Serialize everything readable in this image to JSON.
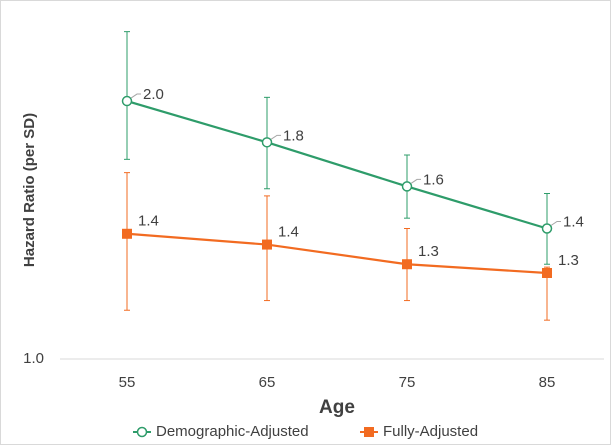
{
  "chart_data": {
    "type": "line",
    "y_label": "Hazard Ratio (per SD)",
    "x_label": "Age",
    "categories": [
      "55",
      "65",
      "75",
      "85"
    ],
    "log_scale": true,
    "ylim": [
      1,
      2.5
    ],
    "yticks": [
      {
        "value": 1,
        "label": "1.0"
      }
    ],
    "series": [
      {
        "name": "Demographic-Adjusted",
        "color": "#2e9c6a",
        "marker": "circle",
        "values": [
          2.0,
          1.79,
          1.59,
          1.42
        ],
        "value_labels": [
          "2.0",
          "1.8",
          "1.6",
          "1.4"
        ],
        "lower": [
          1.71,
          1.58,
          1.46,
          1.29
        ],
        "upper": [
          2.41,
          2.02,
          1.73,
          1.56
        ]
      },
      {
        "name": "Fully-Adjusted",
        "color": "#f26b21",
        "marker": "square",
        "values": [
          1.4,
          1.36,
          1.29,
          1.26
        ],
        "value_labels": [
          "1.4",
          "1.4",
          "1.3",
          "1.3"
        ],
        "lower": [
          1.14,
          1.17,
          1.17,
          1.11
        ],
        "upper": [
          1.65,
          1.55,
          1.42,
          1.28
        ]
      }
    ]
  }
}
